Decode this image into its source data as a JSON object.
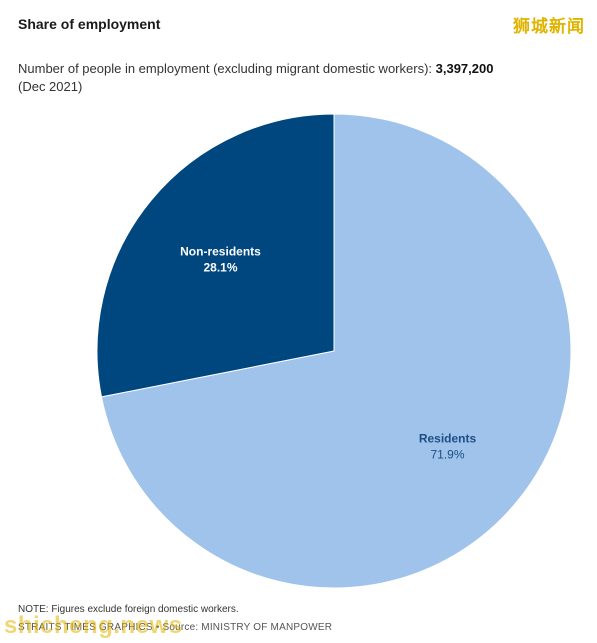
{
  "title": "Share of employment",
  "watermark_top": "狮城新闻",
  "subtitle": {
    "text": "Number of people in employment (excluding migrant domestic workers): ",
    "total": "3,397,200",
    "date": "(Dec 2021)"
  },
  "chart_data": {
    "type": "pie",
    "title": "Share of employment",
    "slices": [
      {
        "name": "Residents",
        "value": 71.9,
        "label": "71.9%",
        "color": "#9fc3ea",
        "label_color": "#1f4e86"
      },
      {
        "name": "Non-residents",
        "value": 28.1,
        "label": "28.1%",
        "color": "#00467f",
        "label_color": "#ffffff"
      }
    ]
  },
  "note": "NOTE: Figures exclude foreign domestic workers.",
  "credit": "STRAITS TIMES GRAPHICS • Source: MINISTRY OF MANPOWER",
  "watermark_bottom": "shicheng.news"
}
